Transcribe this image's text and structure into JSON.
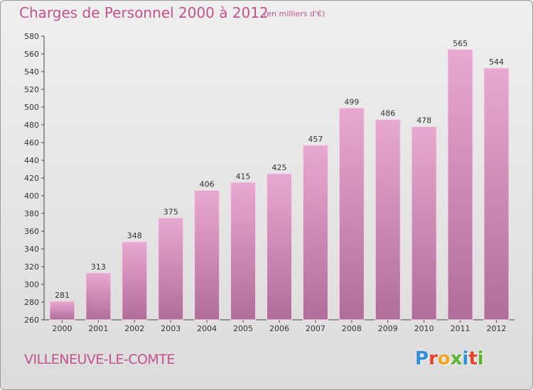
{
  "title": "Charges de Personnel 2000 à 2012",
  "subtitle": "(en milliers d'€)",
  "commune": "VILLENEUVE-LE-COMTE",
  "logo": {
    "text": "Proxiti",
    "letters": [
      "P",
      "r",
      "o",
      "x",
      "i",
      "t",
      "i"
    ],
    "colors": [
      "#2f8fd8",
      "#e8432a",
      "#f5a623",
      "#5cb531",
      "#2f8fd8",
      "#e8432a",
      "#5cb531"
    ]
  },
  "colors": {
    "accent": "#c2528e",
    "bar_top": "#e8a9d0",
    "bar_bottom": "#b06d98"
  },
  "chart_data": {
    "type": "bar",
    "categories": [
      "2000",
      "2001",
      "2002",
      "2003",
      "2004",
      "2005",
      "2006",
      "2007",
      "2008",
      "2009",
      "2010",
      "2011",
      "2012"
    ],
    "values": [
      281,
      313,
      348,
      375,
      406,
      415,
      425,
      457,
      499,
      486,
      478,
      565,
      544
    ],
    "ylim": [
      260,
      580
    ],
    "yticks": [
      260,
      280,
      300,
      320,
      340,
      360,
      380,
      400,
      420,
      440,
      460,
      480,
      500,
      520,
      540,
      560,
      580
    ],
    "grid": false
  }
}
